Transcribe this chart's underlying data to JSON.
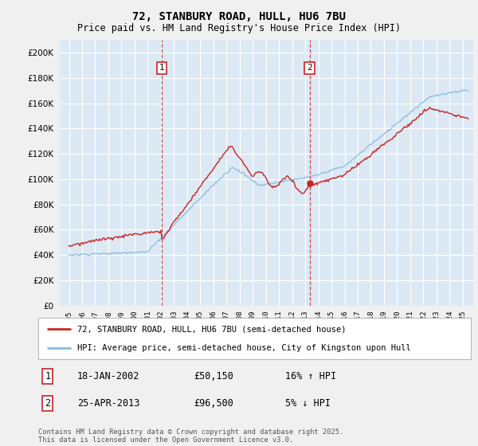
{
  "title_line1": "72, STANBURY ROAD, HULL, HU6 7BU",
  "title_line2": "Price paid vs. HM Land Registry's House Price Index (HPI)",
  "ylim": [
    0,
    210000
  ],
  "yticks": [
    0,
    20000,
    40000,
    60000,
    80000,
    100000,
    120000,
    140000,
    160000,
    180000,
    200000
  ],
  "plot_bg_color": "#dce9f5",
  "fig_bg_color": "#f0f0f0",
  "grid_color": "#ffffff",
  "legend_label_red": "72, STANBURY ROAD, HULL, HU6 7BU (semi-detached house)",
  "legend_label_blue": "HPI: Average price, semi-detached house, City of Kingston upon Hull",
  "marker1_date": "18-JAN-2002",
  "marker1_price": "£50,150",
  "marker1_hpi": "16% ↑ HPI",
  "marker2_date": "25-APR-2013",
  "marker2_price": "£96,500",
  "marker2_hpi": "5% ↓ HPI",
  "footnote": "Contains HM Land Registry data © Crown copyright and database right 2025.\nThis data is licensed under the Open Government Licence v3.0.",
  "line_red_color": "#cc2222",
  "line_blue_color": "#88bbdd",
  "vline_color": "#dd4444",
  "marker_box_color": "#cc2222",
  "t1": 2002.05,
  "t2": 2013.33
}
